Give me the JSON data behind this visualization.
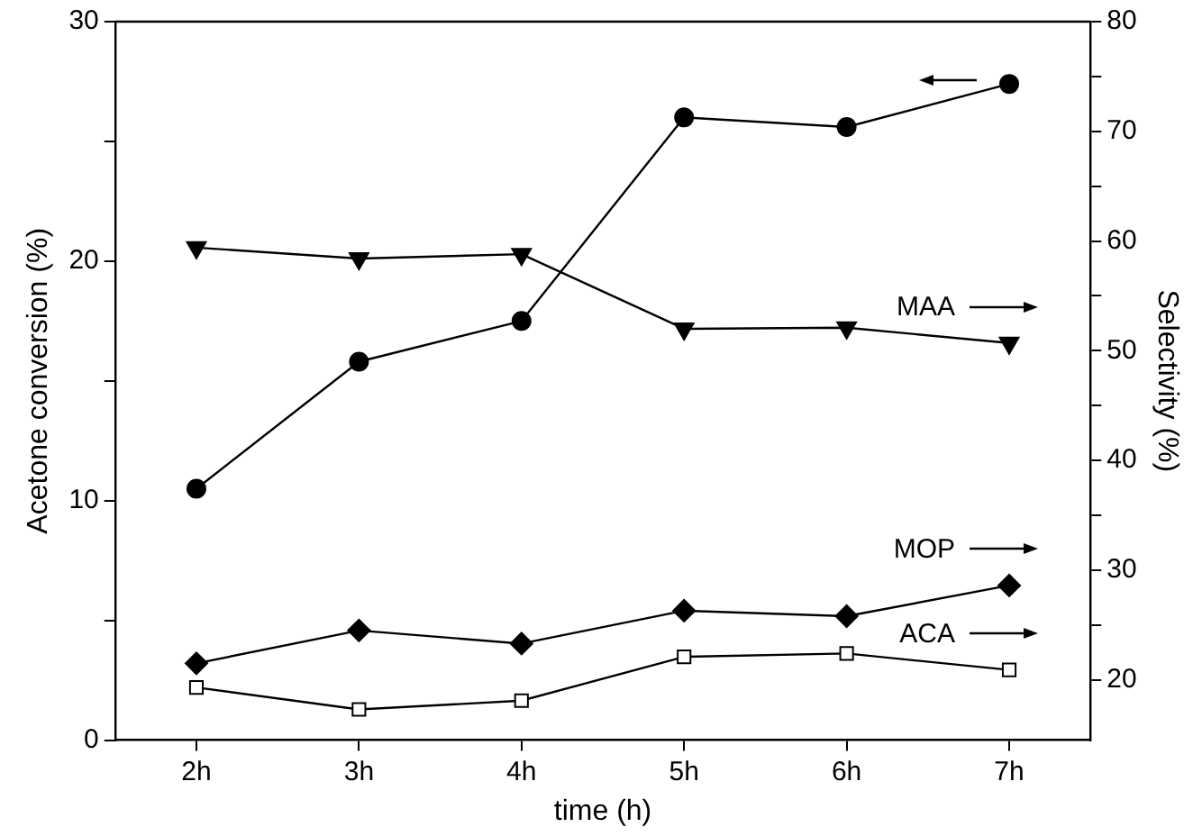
{
  "chart_data": {
    "type": "line",
    "categories": [
      "2h",
      "3h",
      "4h",
      "5h",
      "6h",
      "7h"
    ],
    "xlabel": "time (h)",
    "ylabel": "Acetone conversion (%)",
    "y2label": "Selectivity (%)",
    "ylim": [
      0,
      30
    ],
    "yticks": [
      0,
      {
        "value": 5,
        "label": null
      },
      10,
      {
        "value": 15,
        "label": null
      },
      20,
      {
        "value": 25,
        "label": null
      },
      30
    ],
    "y2lim": [
      14.5,
      80
    ],
    "y2ticks": [
      20,
      {
        "value": 25,
        "label": null
      },
      30,
      {
        "value": 35,
        "label": null
      },
      40,
      {
        "value": 45,
        "label": null
      },
      50,
      {
        "value": 55,
        "label": null
      },
      60,
      {
        "value": 65,
        "label": null
      },
      70,
      {
        "value": 75,
        "label": null
      },
      80
    ],
    "grid": false,
    "legend": "right",
    "series": [
      {
        "color": "#000000",
        "marker": "circle",
        "values": [
          10.5,
          15.8,
          17.5,
          26.0,
          25.6,
          27.4
        ]
      },
      {
        "name": "MAA",
        "color": "#000000",
        "marker": "triangle",
        "axis": "y2",
        "values": [
          59.4,
          58.4,
          58.8,
          52.0,
          52.1,
          50.7
        ]
      },
      {
        "name": "MOP",
        "color": "#000000",
        "marker": "diamond",
        "axis": "y2",
        "values": [
          21.5,
          24.5,
          23.3,
          26.3,
          25.8,
          28.6
        ]
      },
      {
        "name": "ACA",
        "color": "#000000",
        "marker": "square",
        "axis": "y2",
        "values": [
          19.3,
          17.3,
          18.1,
          22.1,
          22.4,
          20.9
        ]
      }
    ]
  }
}
